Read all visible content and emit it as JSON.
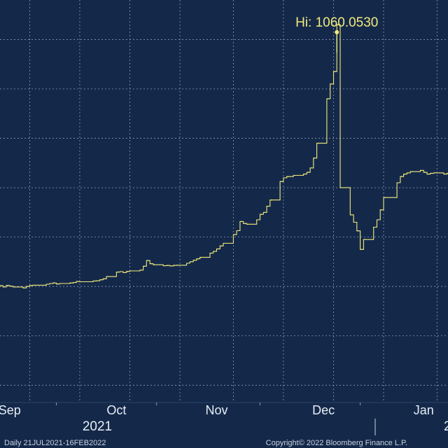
{
  "chart_data": {
    "type": "line",
    "title": "",
    "xlabel": "",
    "ylabel": "",
    "period_label": "Daily 21JUL2021-16FEB2022",
    "copyright": "Copyright© 2022 Bloomberg Finance L.P.",
    "month_ticks": [
      "Sep",
      "Oct",
      "Nov",
      "Dec",
      "Jan"
    ],
    "year_labels": [
      "2021",
      "2"
    ],
    "grid": true,
    "colors": {
      "background": "#14294a",
      "line": "#f2ea7a",
      "grid": "#8a9bb5",
      "text": "#e8edf5"
    },
    "annotation": {
      "label": "Hi: 1060.0530",
      "value": 1060.053,
      "date": "2021-12-09"
    },
    "ylim": [
      -470,
      1160
    ],
    "series": [
      {
        "values": [
          [
            "2021-08-28",
            0
          ],
          [
            "2021-08-30",
            3
          ],
          [
            "2021-08-31",
            -2
          ],
          [
            "2021-09-01",
            4
          ],
          [
            "2021-09-02",
            1
          ],
          [
            "2021-09-03",
            -2
          ],
          [
            "2021-09-06",
            -6
          ],
          [
            "2021-09-07",
            0
          ],
          [
            "2021-09-08",
            4
          ],
          [
            "2021-09-09",
            5
          ],
          [
            "2021-09-10",
            5
          ],
          [
            "2021-09-13",
            9
          ],
          [
            "2021-09-14",
            12
          ],
          [
            "2021-09-15",
            14
          ],
          [
            "2021-09-16",
            10
          ],
          [
            "2021-09-17",
            12
          ],
          [
            "2021-09-20",
            14
          ],
          [
            "2021-09-21",
            16
          ],
          [
            "2021-09-22",
            20
          ],
          [
            "2021-09-23",
            19
          ],
          [
            "2021-09-24",
            19
          ],
          [
            "2021-09-27",
            22
          ],
          [
            "2021-09-28",
            23
          ],
          [
            "2021-09-29",
            27
          ],
          [
            "2021-09-30",
            31
          ],
          [
            "2021-10-01",
            40
          ],
          [
            "2021-10-04",
            58
          ],
          [
            "2021-10-05",
            60
          ],
          [
            "2021-10-06",
            56
          ],
          [
            "2021-10-07",
            61
          ],
          [
            "2021-10-08",
            63
          ],
          [
            "2021-10-11",
            66
          ],
          [
            "2021-10-12",
            82
          ],
          [
            "2021-10-13",
            105
          ],
          [
            "2021-10-14",
            92
          ],
          [
            "2021-10-15",
            88
          ],
          [
            "2021-10-18",
            84
          ],
          [
            "2021-10-19",
            85
          ],
          [
            "2021-10-20",
            83
          ],
          [
            "2021-10-21",
            85
          ],
          [
            "2021-10-22",
            86
          ],
          [
            "2021-10-25",
            94
          ],
          [
            "2021-10-26",
            100
          ],
          [
            "2021-10-27",
            106
          ],
          [
            "2021-10-28",
            112
          ],
          [
            "2021-10-29",
            118
          ],
          [
            "2021-11-01",
            135
          ],
          [
            "2021-11-02",
            142
          ],
          [
            "2021-11-03",
            152
          ],
          [
            "2021-11-04",
            164
          ],
          [
            "2021-11-05",
            175
          ],
          [
            "2021-11-08",
            210
          ],
          [
            "2021-11-09",
            226
          ],
          [
            "2021-11-10",
            263
          ],
          [
            "2021-11-11",
            255
          ],
          [
            "2021-11-12",
            252
          ],
          [
            "2021-11-15",
            270
          ],
          [
            "2021-11-16",
            292
          ],
          [
            "2021-11-17",
            300
          ],
          [
            "2021-11-18",
            325
          ],
          [
            "2021-11-19",
            350
          ],
          [
            "2021-11-22",
            425
          ],
          [
            "2021-11-23",
            440
          ],
          [
            "2021-11-24",
            445
          ],
          [
            "2021-11-26",
            450
          ],
          [
            "2021-11-29",
            455
          ],
          [
            "2021-11-30",
            462
          ],
          [
            "2021-12-01",
            480
          ],
          [
            "2021-12-02",
            520
          ],
          [
            "2021-12-03",
            580
          ],
          [
            "2021-12-06",
            760
          ],
          [
            "2021-12-07",
            820
          ],
          [
            "2021-12-08",
            870
          ],
          [
            "2021-12-09",
            1060
          ],
          [
            "2021-12-10",
            400
          ],
          [
            "2021-12-13",
            290
          ],
          [
            "2021-12-14",
            260
          ],
          [
            "2021-12-15",
            225
          ],
          [
            "2021-12-16",
            150
          ],
          [
            "2021-12-17",
            190
          ],
          [
            "2021-12-20",
            240
          ],
          [
            "2021-12-21",
            270
          ],
          [
            "2021-12-22",
            310
          ],
          [
            "2021-12-23",
            360
          ],
          [
            "2021-12-27",
            420
          ],
          [
            "2021-12-28",
            445
          ],
          [
            "2021-12-29",
            455
          ],
          [
            "2021-12-30",
            460
          ],
          [
            "2021-12-31",
            465
          ],
          [
            "2022-01-03",
            470
          ],
          [
            "2022-01-04",
            462
          ],
          [
            "2022-01-05",
            455
          ],
          [
            "2022-01-06",
            458
          ],
          [
            "2022-01-07",
            460
          ],
          [
            "2022-01-10",
            455
          ],
          [
            "2022-01-11",
            458
          ]
        ]
      }
    ]
  }
}
